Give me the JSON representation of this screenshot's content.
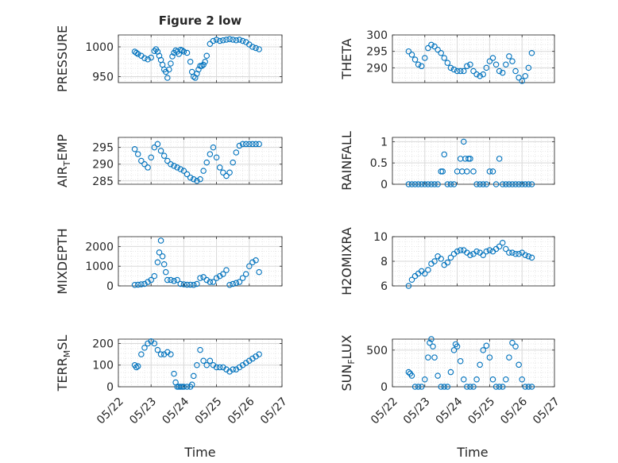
{
  "figure": {
    "title": "Figure 2 low",
    "xlabel": "Time",
    "date_ticks": [
      "05/22",
      "05/23",
      "05/24",
      "05/25",
      "05/26",
      "05/27"
    ],
    "marker_color": "#0072bd",
    "grid": true,
    "minor_grid": true
  },
  "chart_data": [
    {
      "type": "scatter",
      "panel": "pressure",
      "ylabel": "PRESSURE",
      "xlim": [
        0,
        5
      ],
      "ylim": [
        940,
        1020
      ],
      "yticks": [
        950,
        1000
      ],
      "x": [
        0.5,
        0.55,
        0.6,
        0.7,
        0.8,
        0.9,
        1.0,
        1.1,
        1.15,
        1.2,
        1.25,
        1.3,
        1.35,
        1.4,
        1.45,
        1.5,
        1.55,
        1.6,
        1.65,
        1.7,
        1.75,
        1.8,
        1.85,
        1.9,
        1.95,
        2.0,
        2.1,
        2.2,
        2.25,
        2.3,
        2.35,
        2.4,
        2.45,
        2.5,
        2.55,
        2.6,
        2.65,
        2.7,
        2.8,
        2.9,
        3.0,
        3.1,
        3.2,
        3.3,
        3.4,
        3.5,
        3.6,
        3.7,
        3.8,
        3.9,
        4.0,
        4.1,
        4.2,
        4.3
      ],
      "y": [
        992,
        990,
        988,
        985,
        981,
        979,
        982,
        993,
        996,
        992,
        985,
        978,
        970,
        962,
        958,
        948,
        962,
        972,
        984,
        990,
        994,
        992,
        988,
        995,
        994,
        992,
        990,
        975,
        958,
        950,
        948,
        955,
        962,
        968,
        968,
        970,
        975,
        985,
        1005,
        1010,
        1012,
        1010,
        1011,
        1012,
        1013,
        1012,
        1011,
        1012,
        1010,
        1008,
        1004,
        1000,
        998,
        996
      ]
    },
    {
      "type": "scatter",
      "panel": "theta",
      "ylabel": "THETA",
      "xlim": [
        0,
        5
      ],
      "ylim": [
        285.5,
        300
      ],
      "yticks": [
        290,
        295,
        300
      ],
      "x": [
        0.5,
        0.6,
        0.7,
        0.8,
        0.9,
        1.0,
        1.1,
        1.2,
        1.3,
        1.4,
        1.5,
        1.6,
        1.7,
        1.8,
        1.9,
        2.0,
        2.1,
        2.2,
        2.3,
        2.4,
        2.5,
        2.6,
        2.7,
        2.8,
        2.9,
        3.0,
        3.1,
        3.2,
        3.3,
        3.4,
        3.5,
        3.6,
        3.7,
        3.8,
        3.9,
        4.0,
        4.1,
        4.2,
        4.3
      ],
      "y": [
        295.0,
        294.0,
        292.5,
        291.0,
        290.5,
        293.0,
        296.0,
        297.0,
        296.5,
        295.5,
        294.5,
        293.0,
        291.5,
        290.0,
        289.5,
        289.0,
        289.0,
        289.0,
        290.5,
        291.0,
        289.0,
        288.0,
        287.5,
        288.0,
        290.0,
        292.0,
        293.0,
        291.0,
        289.0,
        288.5,
        291.0,
        293.5,
        292.0,
        289.0,
        287.0,
        286.0,
        287.5,
        290.0,
        294.5
      ]
    },
    {
      "type": "scatter",
      "panel": "air_temp",
      "ylabel": "AIR_TEMP",
      "xlim": [
        0,
        5
      ],
      "ylim": [
        284,
        298
      ],
      "yticks": [
        285,
        290,
        295
      ],
      "x": [
        0.5,
        0.6,
        0.7,
        0.8,
        0.9,
        1.0,
        1.1,
        1.2,
        1.3,
        1.4,
        1.5,
        1.6,
        1.7,
        1.8,
        1.9,
        2.0,
        2.1,
        2.2,
        2.3,
        2.4,
        2.5,
        2.6,
        2.7,
        2.8,
        2.9,
        3.0,
        3.1,
        3.2,
        3.3,
        3.4,
        3.5,
        3.6,
        3.7,
        3.8,
        3.9,
        4.0,
        4.1,
        4.2,
        4.3
      ],
      "y": [
        294.5,
        293.0,
        291.0,
        290.0,
        289.0,
        292.0,
        295.0,
        296.0,
        294.0,
        292.5,
        291.0,
        290.0,
        289.5,
        289.0,
        288.5,
        288.0,
        287.0,
        286.0,
        285.5,
        285.0,
        285.5,
        288.0,
        290.5,
        293.0,
        295.0,
        292.0,
        289.0,
        287.5,
        286.5,
        287.5,
        290.5,
        293.5,
        295.5,
        296.0,
        296.0,
        296.0,
        296.0,
        296.0,
        296.0
      ]
    },
    {
      "type": "scatter",
      "panel": "rainfall",
      "ylabel": "RAINFALL",
      "xlim": [
        0,
        5
      ],
      "ylim": [
        0,
        1.1
      ],
      "yticks": [
        0,
        0.5,
        1
      ],
      "x": [
        0.5,
        0.6,
        0.7,
        0.8,
        0.9,
        1.0,
        1.1,
        1.2,
        1.3,
        1.4,
        1.5,
        1.55,
        1.6,
        1.7,
        1.8,
        1.9,
        2.0,
        2.1,
        2.15,
        2.2,
        2.25,
        2.3,
        2.35,
        2.4,
        2.5,
        2.6,
        2.7,
        2.8,
        2.9,
        3.0,
        3.1,
        3.2,
        3.3,
        3.4,
        3.5,
        3.6,
        3.7,
        3.8,
        3.9,
        4.0,
        4.1,
        4.2,
        4.3
      ],
      "y": [
        0,
        0,
        0,
        0,
        0,
        0,
        0,
        0,
        0,
        0,
        0.3,
        0.3,
        0.7,
        0,
        0,
        0,
        0.3,
        0.6,
        0.3,
        1.0,
        0.6,
        0.3,
        0.6,
        0.6,
        0.3,
        0,
        0,
        0,
        0,
        0.3,
        0.3,
        0,
        0.6,
        0,
        0,
        0,
        0,
        0,
        0,
        0,
        0,
        0,
        0
      ]
    },
    {
      "type": "scatter",
      "panel": "mixdepth",
      "ylabel": "MIXDEPTH",
      "xlim": [
        0,
        5
      ],
      "ylim": [
        0,
        2500
      ],
      "yticks": [
        0,
        1000,
        2000
      ],
      "x": [
        0.5,
        0.6,
        0.7,
        0.8,
        0.9,
        1.0,
        1.1,
        1.2,
        1.25,
        1.3,
        1.35,
        1.4,
        1.45,
        1.5,
        1.6,
        1.7,
        1.8,
        1.9,
        2.0,
        2.1,
        2.2,
        2.3,
        2.4,
        2.5,
        2.6,
        2.7,
        2.8,
        2.9,
        3.0,
        3.1,
        3.2,
        3.3,
        3.4,
        3.5,
        3.6,
        3.7,
        3.8,
        3.9,
        4.0,
        4.1,
        4.2,
        4.3
      ],
      "y": [
        50,
        60,
        80,
        100,
        200,
        300,
        500,
        1200,
        1700,
        2300,
        1500,
        1100,
        700,
        300,
        300,
        250,
        300,
        100,
        80,
        60,
        60,
        50,
        100,
        400,
        450,
        300,
        200,
        200,
        400,
        500,
        600,
        800,
        50,
        100,
        150,
        200,
        400,
        600,
        1000,
        1200,
        1300,
        700
      ]
    },
    {
      "type": "scatter",
      "panel": "h2omixra",
      "ylabel": "H2OMIXRA",
      "xlim": [
        0,
        5
      ],
      "ylim": [
        6,
        10
      ],
      "yticks": [
        6,
        8,
        10
      ],
      "x": [
        0.5,
        0.6,
        0.7,
        0.8,
        0.9,
        1.0,
        1.1,
        1.2,
        1.3,
        1.4,
        1.5,
        1.6,
        1.7,
        1.8,
        1.9,
        2.0,
        2.1,
        2.2,
        2.3,
        2.4,
        2.5,
        2.6,
        2.7,
        2.8,
        2.9,
        3.0,
        3.1,
        3.2,
        3.3,
        3.4,
        3.5,
        3.6,
        3.7,
        3.8,
        3.9,
        4.0,
        4.1,
        4.2,
        4.3
      ],
      "y": [
        6.0,
        6.5,
        6.8,
        7.0,
        7.2,
        7.0,
        7.3,
        7.8,
        8.0,
        8.4,
        8.2,
        7.7,
        7.9,
        8.3,
        8.6,
        8.8,
        8.9,
        8.9,
        8.7,
        8.5,
        8.6,
        8.8,
        8.7,
        8.5,
        8.8,
        8.9,
        8.8,
        9.0,
        9.2,
        9.5,
        9.0,
        8.7,
        8.7,
        8.6,
        8.6,
        8.7,
        8.5,
        8.4,
        8.3
      ]
    },
    {
      "type": "scatter",
      "panel": "terr_msl",
      "ylabel": "TERR_MSL",
      "xlim": [
        0,
        5
      ],
      "ylim": [
        0,
        220
      ],
      "yticks": [
        0,
        100,
        200
      ],
      "x": [
        0.5,
        0.55,
        0.6,
        0.7,
        0.8,
        0.9,
        1.0,
        1.1,
        1.2,
        1.3,
        1.4,
        1.5,
        1.6,
        1.7,
        1.75,
        1.8,
        1.85,
        1.9,
        1.95,
        2.0,
        2.1,
        2.2,
        2.25,
        2.3,
        2.4,
        2.5,
        2.6,
        2.7,
        2.8,
        2.9,
        3.0,
        3.1,
        3.2,
        3.3,
        3.4,
        3.5,
        3.6,
        3.7,
        3.8,
        3.9,
        4.0,
        4.1,
        4.2,
        4.3
      ],
      "y": [
        100,
        90,
        95,
        150,
        180,
        200,
        210,
        200,
        170,
        150,
        150,
        160,
        150,
        60,
        20,
        0,
        0,
        0,
        0,
        0,
        0,
        0,
        10,
        50,
        100,
        170,
        120,
        100,
        120,
        100,
        90,
        90,
        90,
        80,
        70,
        80,
        80,
        90,
        100,
        110,
        120,
        130,
        140,
        150
      ]
    },
    {
      "type": "scatter",
      "panel": "sun_flux",
      "ylabel": "SUN_FLUX",
      "xlim": [
        0,
        5
      ],
      "ylim": [
        0,
        650
      ],
      "yticks": [
        0,
        500
      ],
      "x": [
        0.5,
        0.55,
        0.6,
        0.7,
        0.8,
        0.9,
        1.0,
        1.1,
        1.15,
        1.2,
        1.25,
        1.3,
        1.4,
        1.5,
        1.6,
        1.7,
        1.8,
        1.9,
        1.95,
        2.0,
        2.1,
        2.2,
        2.3,
        2.4,
        2.5,
        2.6,
        2.7,
        2.8,
        2.9,
        3.0,
        3.1,
        3.2,
        3.3,
        3.4,
        3.5,
        3.6,
        3.7,
        3.8,
        3.9,
        4.0,
        4.1,
        4.2,
        4.3
      ],
      "y": [
        200,
        180,
        150,
        0,
        0,
        0,
        100,
        400,
        600,
        650,
        550,
        400,
        150,
        0,
        0,
        0,
        200,
        500,
        580,
        550,
        350,
        100,
        0,
        0,
        0,
        100,
        300,
        500,
        560,
        400,
        100,
        0,
        0,
        0,
        100,
        400,
        600,
        550,
        300,
        100,
        0,
        0,
        0
      ]
    }
  ]
}
